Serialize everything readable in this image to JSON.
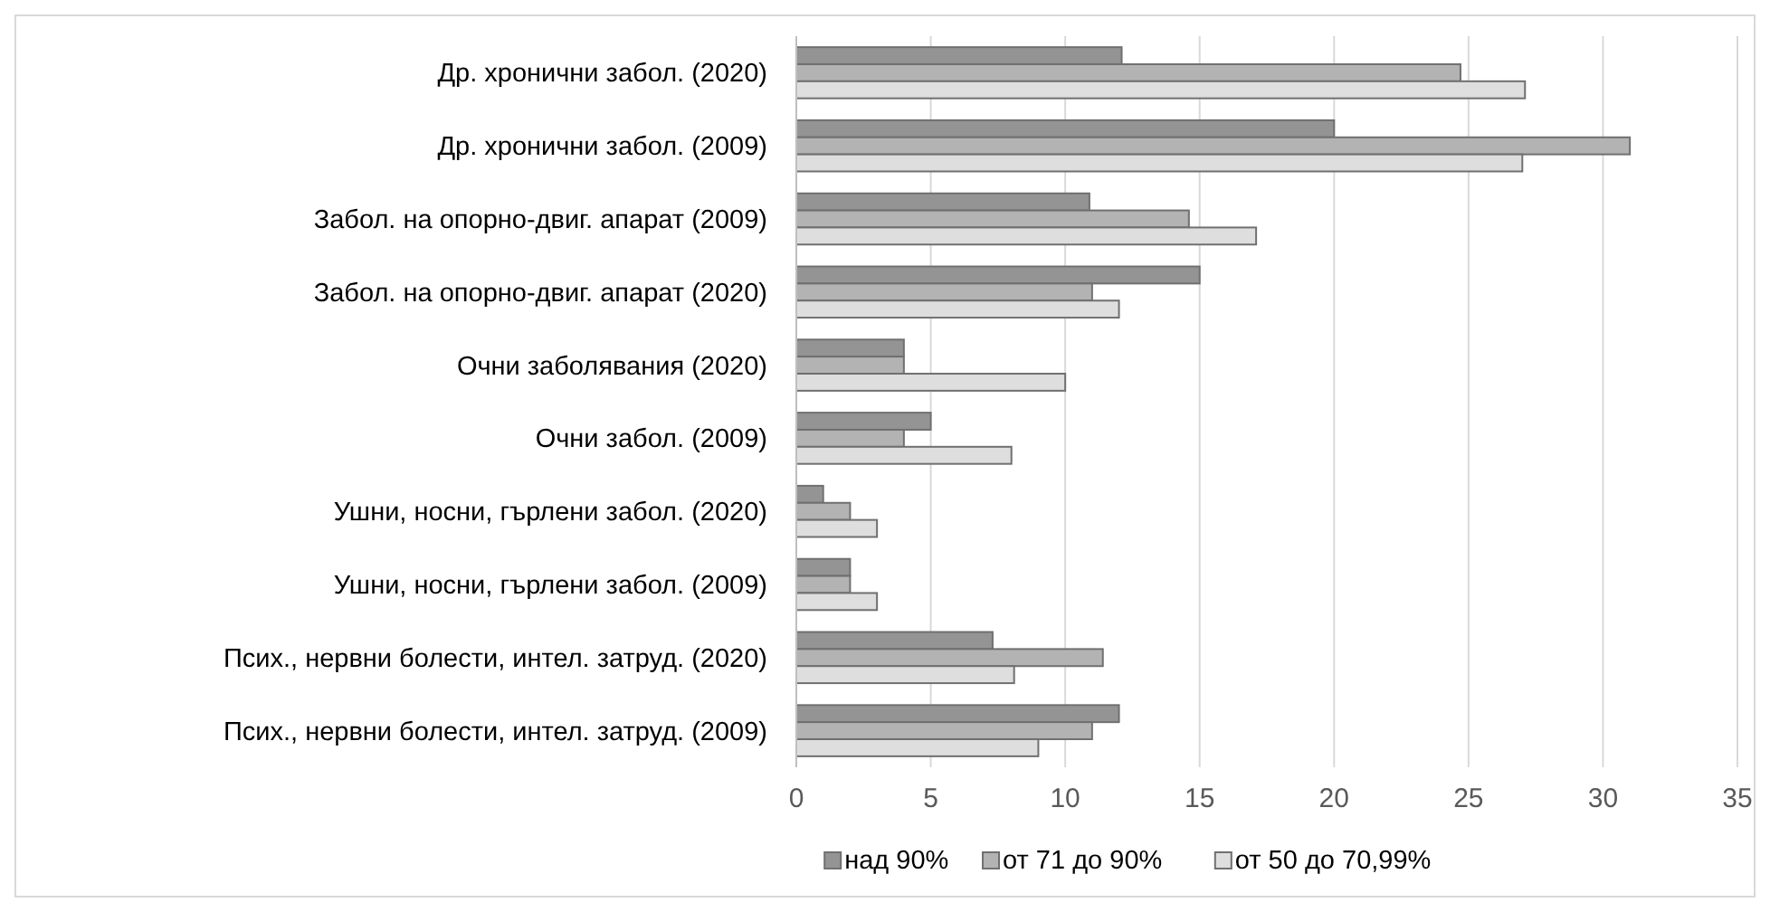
{
  "chart_data": {
    "type": "bar",
    "orientation": "horizontal",
    "categories": [
      "Др. хронични забол. (2020)",
      "Др. хронични забол. (2009)",
      "Забол. на опорно-двиг. апарат (2009)",
      "Забол. на опорно-двиг. апарат (2020)",
      "Очни заболявания (2020)",
      "Очни забол. (2009)",
      "Ушни, носни, гърлени забол. (2020)",
      "Ушни, носни, гърлени забол. (2009)",
      "Псих., нервни болести, интел. затруд. (2020)",
      "Псих., нервни болести, интел. затруд. (2009)"
    ],
    "series": [
      {
        "name": "над 90%",
        "color": "#949494",
        "values": [
          12.1,
          20,
          10.9,
          15,
          4,
          5,
          1,
          2,
          7.3,
          12
        ]
      },
      {
        "name": "от 71 до 90%",
        "color": "#b3b3b3",
        "values": [
          24.7,
          31,
          14.6,
          11,
          4,
          4,
          2,
          2,
          11.4,
          11
        ]
      },
      {
        "name": "от 50 до 70,99%",
        "color": "#dedede",
        "values": [
          27.1,
          27,
          17.1,
          12,
          10,
          8,
          3,
          3,
          8.1,
          9
        ]
      }
    ],
    "xlim": [
      0,
      35
    ],
    "xticks": [
      0,
      5,
      10,
      15,
      20,
      25,
      30,
      35
    ],
    "grid": "x",
    "legend": "bottom"
  }
}
